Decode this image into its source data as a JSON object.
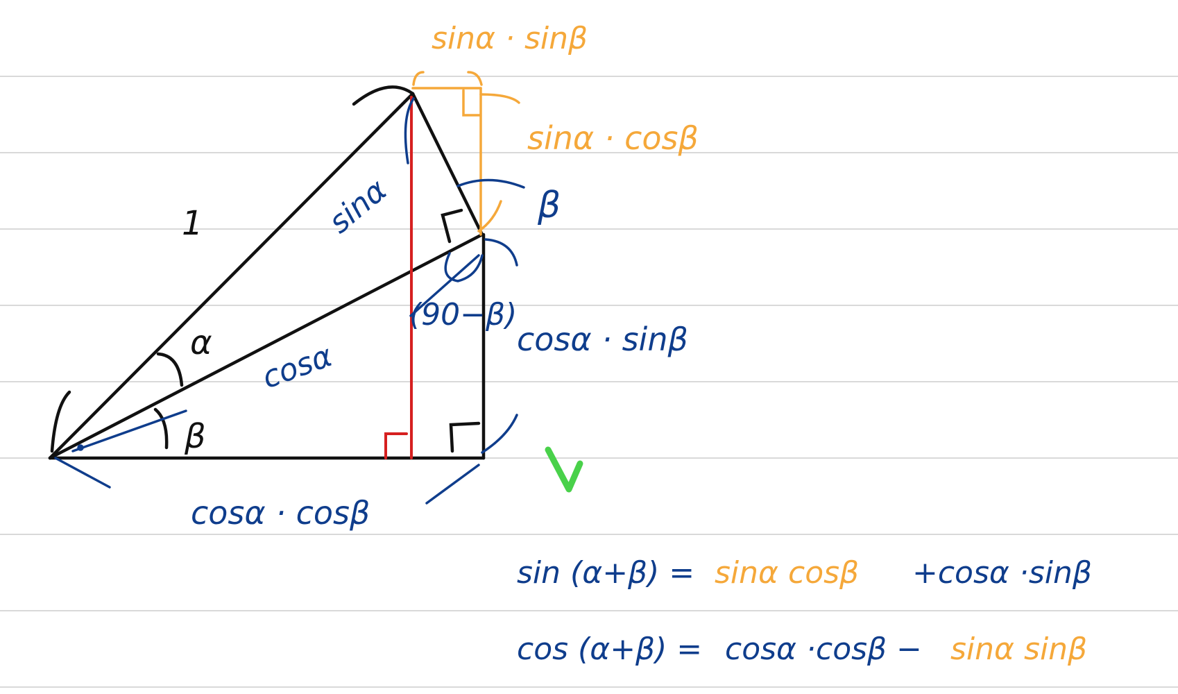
{
  "colors": {
    "rule_line": "#d9d9d9",
    "ink_black": "#111111",
    "ink_blue": "#0f3d8c",
    "ink_orange": "#f5a83a",
    "ink_red": "#d62020",
    "ink_green": "#49d14a"
  },
  "labels": {
    "hyp_one": "1",
    "sin_alpha": "sinα",
    "cos_alpha": "cosα",
    "alpha": "α",
    "beta_small": "β",
    "beta_top": "β",
    "ninety_minus_beta": "(90−β)",
    "cos_alpha_cos_beta": "cosα · cosβ",
    "cos_alpha_sin_beta": "cosα · sinβ",
    "sin_alpha_sin_beta_top": "sinα · sinβ",
    "sin_alpha_cos_beta_side": "sinα · cosβ"
  },
  "formulas": {
    "sin_sum": {
      "lhs": "sin (α+β) =",
      "term1": "sinα cosβ",
      "term2": "+cosα ·sinβ"
    },
    "cos_sum": {
      "lhs": "cos (α+β) =",
      "term1": "cosα ·cosβ −",
      "term2": "sinα sinβ"
    }
  },
  "icons": {
    "check": "checkmark-icon"
  }
}
